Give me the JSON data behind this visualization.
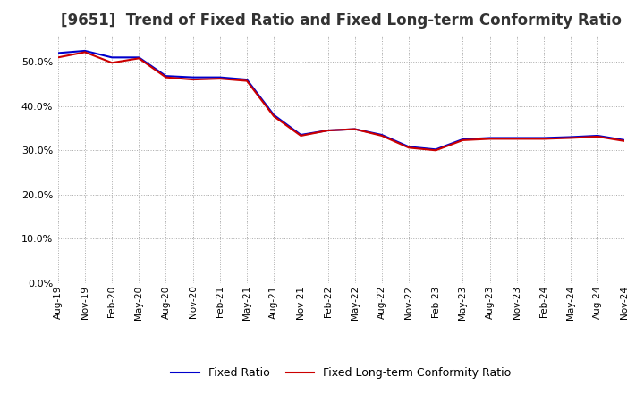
{
  "title": "[9651]  Trend of Fixed Ratio and Fixed Long-term Conformity Ratio",
  "title_fontsize": 12,
  "ylim": [
    0.0,
    0.56
  ],
  "yticks": [
    0.0,
    0.1,
    0.2,
    0.3,
    0.4,
    0.5
  ],
  "background_color": "#ffffff",
  "grid_color": "#aaaaaa",
  "x_labels": [
    "Aug-19",
    "Nov-19",
    "Feb-20",
    "May-20",
    "Aug-20",
    "Nov-20",
    "Feb-21",
    "May-21",
    "Aug-21",
    "Nov-21",
    "Feb-22",
    "May-22",
    "Aug-22",
    "Nov-22",
    "Feb-23",
    "May-23",
    "Aug-23",
    "Nov-23",
    "Feb-24",
    "May-24",
    "Aug-24",
    "Nov-24"
  ],
  "fixed_ratio": [
    0.52,
    0.525,
    0.51,
    0.51,
    0.468,
    0.465,
    0.465,
    0.46,
    0.38,
    0.335,
    0.345,
    0.348,
    0.335,
    0.308,
    0.302,
    0.325,
    0.328,
    0.328,
    0.328,
    0.33,
    0.333,
    0.323
  ],
  "fixed_lt_ratio": [
    0.51,
    0.522,
    0.498,
    0.508,
    0.465,
    0.46,
    0.462,
    0.457,
    0.377,
    0.333,
    0.345,
    0.348,
    0.333,
    0.306,
    0.3,
    0.323,
    0.326,
    0.326,
    0.326,
    0.328,
    0.331,
    0.321
  ],
  "line1_color": "#0000cc",
  "line2_color": "#cc0000",
  "line_width": 1.5,
  "legend_labels": [
    "Fixed Ratio",
    "Fixed Long-term Conformity Ratio"
  ]
}
